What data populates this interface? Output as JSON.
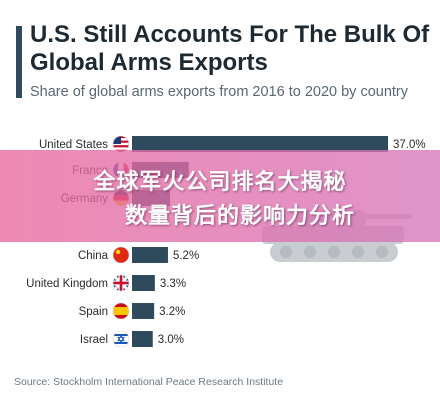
{
  "title": "U.S. Still Accounts For The Bulk Of Global Arms Exports",
  "subtitle": "Share of global arms exports from 2016 to 2020 by country",
  "source": "Source: Stockholm International Peace Research Institute",
  "overlay": {
    "line1": "全球军火公司排名大揭秘",
    "line2": "数量背后的影响力分析"
  },
  "colors": {
    "bar": "#2f4a5c",
    "accent": "#2f4a5c",
    "overlay": "#e56aa0"
  },
  "icons": [
    "us-flag-icon",
    "france-flag-icon",
    "germany-flag-icon",
    "china-flag-icon",
    "uk-flag-icon",
    "spain-flag-icon",
    "israel-flag-icon",
    "tank-icon"
  ],
  "chart_data": {
    "type": "bar",
    "orientation": "horizontal",
    "unit": "%",
    "xlim": [
      0,
      37
    ],
    "categories": [
      "United States",
      "France",
      "Germany",
      "China",
      "United Kingdom",
      "Spain",
      "Israel"
    ],
    "values": [
      37.0,
      8.2,
      5.5,
      5.2,
      3.3,
      3.2,
      3.0
    ],
    "value_labels": [
      "37.0%",
      "",
      "",
      "5.2%",
      "3.3%",
      "3.2%",
      "3.0%"
    ]
  }
}
